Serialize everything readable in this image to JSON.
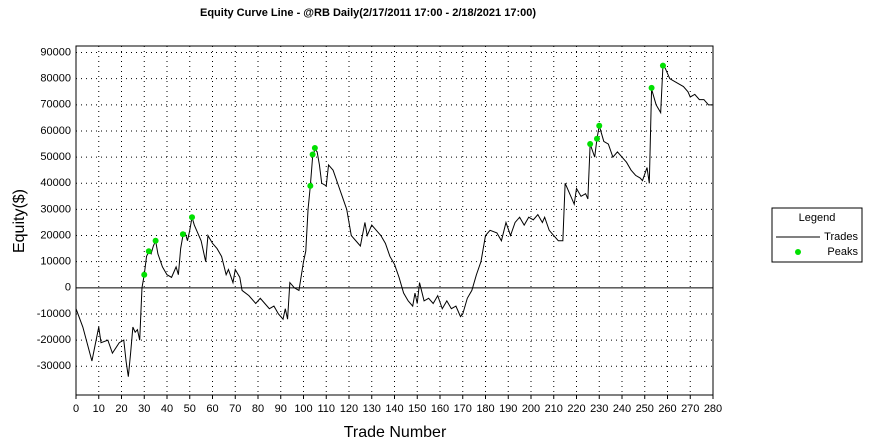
{
  "chart_data": {
    "type": "line",
    "title": "Equity Curve Line - @RB Daily(2/17/2011 17:00 - 2/18/2021 17:00)",
    "x_label": "Trade Number",
    "y_label": "Equity($)",
    "xlim": [
      0,
      280
    ],
    "ylim": [
      -41000,
      92500
    ],
    "xticks": [
      0,
      10,
      20,
      30,
      40,
      50,
      60,
      70,
      80,
      90,
      100,
      110,
      120,
      130,
      140,
      150,
      160,
      170,
      180,
      190,
      200,
      210,
      220,
      230,
      240,
      250,
      260,
      270,
      280
    ],
    "yticks": [
      -30000,
      -20000,
      -10000,
      0,
      10000,
      20000,
      30000,
      40000,
      50000,
      60000,
      70000,
      80000,
      90000
    ],
    "grid": true,
    "legend_title": "Legend",
    "legend": "right",
    "series": [
      {
        "name": "Trades",
        "color": "#000000",
        "type": "line",
        "x": [
          0,
          3,
          7,
          10,
          11,
          14,
          16,
          19,
          21,
          22,
          23,
          24,
          25,
          26,
          27,
          28,
          29,
          30,
          31,
          32,
          33,
          34,
          35,
          36,
          38,
          40,
          42,
          44,
          45,
          46,
          47,
          48,
          49,
          50,
          51,
          52,
          53,
          55,
          57,
          58,
          60,
          62,
          64,
          66,
          67,
          69,
          70,
          72,
          73,
          76,
          79,
          81,
          83,
          85,
          87,
          89,
          91,
          92,
          93,
          94,
          96,
          98,
          100,
          101,
          102,
          103,
          104,
          105,
          106,
          107,
          108,
          110,
          111,
          113,
          115,
          117,
          119,
          121,
          123,
          125,
          127,
          128,
          130,
          132,
          134,
          136,
          138,
          140,
          142,
          144,
          146,
          148,
          149,
          150,
          151,
          153,
          155,
          157,
          159,
          161,
          163,
          165,
          167,
          169,
          170,
          172,
          174,
          176,
          178,
          180,
          182,
          185,
          187,
          189,
          191,
          193,
          195,
          197,
          199,
          201,
          203,
          205,
          206,
          208,
          210,
          212,
          214,
          215,
          217,
          219,
          220,
          222,
          224,
          225,
          226,
          228,
          229,
          230,
          232,
          234,
          236,
          238,
          240,
          242,
          244,
          246,
          248,
          249,
          251,
          252,
          253,
          255,
          257,
          258,
          259,
          261,
          263,
          265,
          267,
          269,
          270,
          272,
          274,
          276,
          278,
          280
        ],
        "values": [
          -8000,
          -15000,
          -28000,
          -15000,
          -21000,
          -20000,
          -25000,
          -21000,
          -20000,
          -28000,
          -34000,
          -25000,
          -15000,
          -17000,
          -16000,
          -20000,
          0,
          5000,
          12000,
          14000,
          13000,
          16000,
          18000,
          13000,
          8000,
          5000,
          4000,
          8000,
          5000,
          15000,
          20000,
          21000,
          18000,
          22000,
          27000,
          24000,
          22000,
          18000,
          10000,
          20000,
          17000,
          15000,
          12000,
          5000,
          7000,
          2000,
          7000,
          4000,
          -1000,
          -3000,
          -6000,
          -4000,
          -6000,
          -8000,
          -7000,
          -10000,
          -12000,
          -8000,
          -12000,
          2000,
          0,
          -1000,
          10000,
          14000,
          30000,
          39000,
          50000,
          53000,
          52000,
          47000,
          40000,
          39000,
          47000,
          45000,
          40000,
          35000,
          30000,
          20000,
          18000,
          16000,
          25000,
          20000,
          24000,
          22000,
          20000,
          17000,
          12000,
          9000,
          4000,
          -2000,
          -5000,
          -7000,
          -2000,
          -6000,
          2000,
          -5000,
          -4000,
          -6000,
          -3000,
          -8000,
          -5000,
          -8000,
          -7000,
          -11000,
          -10000,
          -4000,
          -1000,
          5000,
          10000,
          20000,
          22000,
          21000,
          18000,
          25000,
          20000,
          25000,
          27000,
          24000,
          27000,
          26000,
          28000,
          25000,
          27000,
          22000,
          20000,
          18000,
          18000,
          40000,
          36000,
          32000,
          38000,
          35000,
          36000,
          34000,
          55000,
          50000,
          57000,
          62000,
          56000,
          55000,
          50000,
          52000,
          50000,
          48000,
          45000,
          43000,
          42000,
          41000,
          46000,
          40000,
          76000,
          70000,
          67000,
          85000,
          84000,
          80000,
          79000,
          78000,
          77000,
          75000,
          73000,
          74000,
          72000,
          72000,
          70000,
          70000
        ]
      },
      {
        "name": "Peaks",
        "color": "#00e000",
        "type": "scatter",
        "x": [
          30,
          32,
          35,
          47,
          51,
          103,
          104,
          105,
          226,
          229,
          230,
          253,
          258
        ],
        "values": [
          5000,
          14000,
          18000,
          20500,
          27000,
          39000,
          51000,
          53500,
          55000,
          57000,
          62000,
          76500,
          85000
        ]
      }
    ]
  }
}
